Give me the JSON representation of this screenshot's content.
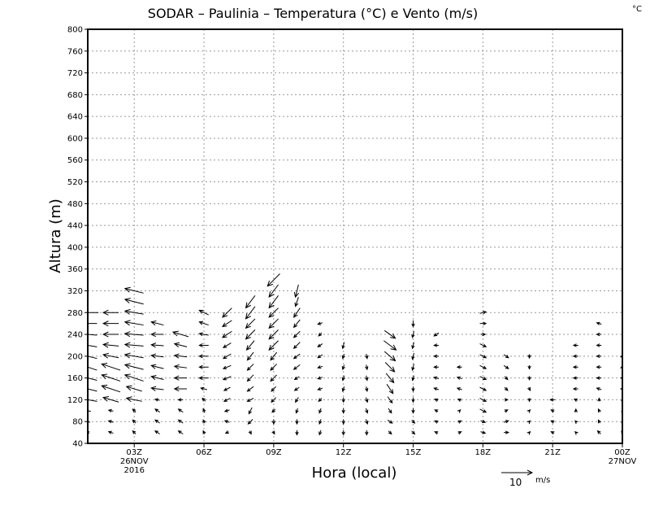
{
  "chart_data": {
    "type": "vector",
    "title": "SODAR  –  Paulinia  –  Temperatura (°C) e Vento (m/s)",
    "colorbar_unit": "°C",
    "xlabel": "Hora (local)",
    "ylabel": "Altura (m)",
    "ylim": [
      40,
      800
    ],
    "yticks": [
      40,
      80,
      120,
      160,
      200,
      240,
      280,
      320,
      360,
      400,
      440,
      480,
      520,
      560,
      600,
      640,
      680,
      720,
      760,
      800
    ],
    "xlim_hours": [
      1,
      24
    ],
    "xticks": [
      {
        "hour": 3,
        "label": "03Z",
        "sub1": "26NOV",
        "sub2": "2016"
      },
      {
        "hour": 6,
        "label": "06Z"
      },
      {
        "hour": 9,
        "label": "09Z"
      },
      {
        "hour": 12,
        "label": "12Z"
      },
      {
        "hour": 15,
        "label": "15Z"
      },
      {
        "hour": 18,
        "label": "18Z"
      },
      {
        "hour": 21,
        "label": "21Z"
      },
      {
        "hour": 24,
        "label": "00Z",
        "sub1": "27NOV"
      }
    ],
    "grid": true,
    "reference_vector": {
      "value": "10",
      "unit": "m/s",
      "speed": 10
    },
    "level_start_m": 60,
    "level_step_m": 20,
    "series_note": "wind vectors [u, v] in m/s per hour column, from 60 m upward every 20 m",
    "columns": [
      {
        "hour": 1,
        "uv": [
          [
            -1,
            0.5
          ],
          [
            -1.5,
            0.5
          ],
          [
            -2,
            0.5
          ],
          [
            -6,
            1
          ],
          [
            -6,
            1.5
          ],
          [
            -6,
            1.5
          ],
          [
            -6,
            2
          ],
          [
            -6,
            1.5
          ],
          [
            -6,
            1
          ],
          [
            -6,
            0.5
          ],
          [
            -6,
            0
          ],
          [
            -7,
            0
          ]
        ]
      },
      {
        "hour": 2,
        "uv": [
          [
            -1.5,
            0.5
          ],
          [
            -1.5,
            0.5
          ],
          [
            -1.5,
            0.3
          ],
          [
            -5,
            1.5
          ],
          [
            -6,
            2
          ],
          [
            -6,
            2
          ],
          [
            -6,
            2
          ],
          [
            -5,
            1
          ],
          [
            -5,
            0.5
          ],
          [
            -5,
            0
          ],
          [
            -5,
            0
          ],
          [
            -5,
            0
          ]
        ]
      },
      {
        "hour": 3,
        "uv": [
          [
            -1,
            1
          ],
          [
            -1,
            1
          ],
          [
            -1,
            1
          ],
          [
            -5,
            1
          ],
          [
            -5,
            1.5
          ],
          [
            -6,
            2
          ],
          [
            -6,
            1.5
          ],
          [
            -6,
            1
          ],
          [
            -6,
            0.5
          ],
          [
            -6,
            0.5
          ],
          [
            -6,
            1
          ],
          [
            -6,
            1
          ],
          [
            -6,
            1.5
          ],
          [
            -6,
            1.5
          ]
        ]
      },
      {
        "hour": 4,
        "uv": [
          [
            -1.5,
            1
          ],
          [
            -1.5,
            1
          ],
          [
            -1.5,
            1
          ],
          [
            -1.5,
            0.3
          ],
          [
            -4,
            0.5
          ],
          [
            -4,
            1
          ],
          [
            -4,
            1
          ],
          [
            -4,
            0.5
          ],
          [
            -4,
            0.3
          ],
          [
            -4,
            0
          ],
          [
            -4,
            1
          ]
        ]
      },
      {
        "hour": 5,
        "uv": [
          [
            -1.5,
            1
          ],
          [
            -1.5,
            1
          ],
          [
            -1.5,
            1
          ],
          [
            -1.5,
            0
          ],
          [
            -4,
            0
          ],
          [
            -4,
            0
          ],
          [
            -4,
            0.5
          ],
          [
            -4,
            0.5
          ],
          [
            -4,
            1
          ],
          [
            -5,
            1.5
          ]
        ]
      },
      {
        "hour": 6,
        "uv": [
          [
            -0.5,
            1
          ],
          [
            -0.5,
            1
          ],
          [
            -0.5,
            1.2
          ],
          [
            -1,
            1
          ],
          [
            -2,
            0.5
          ],
          [
            -3,
            0
          ],
          [
            -3,
            0
          ],
          [
            -3,
            0
          ],
          [
            -3,
            0
          ],
          [
            -3,
            0.5
          ],
          [
            -3,
            1
          ],
          [
            -3,
            1.5
          ]
        ]
      },
      {
        "hour": 7,
        "uv": [
          [
            -1,
            -0.5
          ],
          [
            -1.5,
            0.5
          ],
          [
            -1.5,
            -0.5
          ],
          [
            -2,
            -1
          ],
          [
            -2,
            -1
          ],
          [
            -2.5,
            -1
          ],
          [
            -2.5,
            -1
          ],
          [
            -2.5,
            -1.5
          ],
          [
            -2.5,
            -1.5
          ],
          [
            -3,
            -2
          ],
          [
            -3,
            -2
          ],
          [
            -3,
            -3
          ]
        ]
      },
      {
        "hour": 8,
        "uv": [
          [
            0.5,
            -1
          ],
          [
            -1.5,
            -1.5
          ],
          [
            -1,
            -2
          ],
          [
            -2,
            -1
          ],
          [
            -2,
            -1.5
          ],
          [
            -2,
            -2
          ],
          [
            -2,
            -2
          ],
          [
            -2,
            -2.5
          ],
          [
            -2.5,
            -3
          ],
          [
            -3,
            -3
          ],
          [
            -3,
            -3
          ],
          [
            -3,
            -4
          ],
          [
            -3,
            -4
          ]
        ]
      },
      {
        "hour": 9,
        "uv": [
          [
            0.5,
            -1
          ],
          [
            0,
            -1.5
          ],
          [
            -1,
            -1
          ],
          [
            -1.5,
            -1.5
          ],
          [
            -1.5,
            -1.5
          ],
          [
            -2,
            -2
          ],
          [
            -2,
            -2
          ],
          [
            -2,
            -2.5
          ],
          [
            -3,
            -3
          ],
          [
            -3,
            -3
          ],
          [
            -3,
            -3
          ],
          [
            -3,
            -3
          ],
          [
            -3,
            -4
          ],
          [
            -3,
            -4
          ],
          [
            -4,
            -4
          ]
        ]
      },
      {
        "hour": 10,
        "uv": [
          [
            0,
            -1.5
          ],
          [
            0,
            -1.5
          ],
          [
            -0.5,
            -1.5
          ],
          [
            -1,
            -1.5
          ],
          [
            -1.5,
            -1
          ],
          [
            -1.5,
            -1
          ],
          [
            -2,
            -1.5
          ],
          [
            -2,
            -1.5
          ],
          [
            -2,
            -2
          ],
          [
            -2,
            -2
          ],
          [
            -2,
            -2.5
          ],
          [
            -2,
            -3
          ],
          [
            -1,
            -3
          ],
          [
            -1,
            -4
          ]
        ]
      },
      {
        "hour": 11,
        "uv": [
          [
            -0.5,
            -1.5
          ],
          [
            -0.5,
            -1.5
          ],
          [
            -0.5,
            -1.5
          ],
          [
            -1,
            -1
          ],
          [
            -1.5,
            -0.5
          ],
          [
            -1.5,
            -0.5
          ],
          [
            -1.5,
            -0.5
          ],
          [
            -1.5,
            -1
          ],
          [
            -1.5,
            -1
          ],
          [
            -1,
            -1
          ],
          [
            -1.5,
            -0.5
          ]
        ]
      },
      {
        "hour": 12,
        "uv": [
          [
            0,
            -1.5
          ],
          [
            0,
            -1.5
          ],
          [
            0,
            -1.5
          ],
          [
            0,
            -1.5
          ],
          [
            -0.5,
            -1.5
          ],
          [
            -0.5,
            -1.5
          ],
          [
            -0.5,
            -1.5
          ],
          [
            -0.5,
            -1.5
          ],
          [
            -0.5,
            -2
          ]
        ]
      },
      {
        "hour": 13,
        "uv": [
          [
            0,
            -1.5
          ],
          [
            0.5,
            -1.5
          ],
          [
            0.5,
            -1.5
          ],
          [
            0.5,
            -1.5
          ],
          [
            0.3,
            -1.5
          ],
          [
            0.3,
            -1.5
          ],
          [
            0.3,
            -1.5
          ],
          [
            0.3,
            -1.5
          ]
        ]
      },
      {
        "hour": 14,
        "uv": [
          [
            1,
            -1
          ],
          [
            1.5,
            -1
          ],
          [
            1,
            -1.5
          ],
          [
            1.5,
            -2
          ],
          [
            2,
            -3
          ],
          [
            2.5,
            -3
          ],
          [
            3,
            -3
          ],
          [
            3.5,
            -3
          ],
          [
            4,
            -3
          ],
          [
            3.5,
            -2.5
          ]
        ]
      },
      {
        "hour": 15,
        "uv": [
          [
            1,
            -1
          ],
          [
            1,
            -1
          ],
          [
            0,
            -1.5
          ],
          [
            0,
            -1.5
          ],
          [
            0,
            -1.5
          ],
          [
            -0.5,
            -1.5
          ],
          [
            -0.5,
            -2
          ],
          [
            -0.5,
            -2
          ],
          [
            -0.5,
            -2
          ],
          [
            -0.5,
            -2
          ],
          [
            0,
            -2
          ]
        ]
      },
      {
        "hour": 16,
        "uv": [
          [
            -1,
            0.5
          ],
          [
            -1,
            0.5
          ],
          [
            -1,
            0.5
          ],
          [
            -1,
            0.5
          ],
          [
            -1.5,
            0.5
          ],
          [
            -1.5,
            0.5
          ],
          [
            -1.5,
            0
          ],
          [
            -1.5,
            0
          ],
          [
            -1.5,
            0
          ],
          [
            -1.5,
            -1
          ]
        ]
      },
      {
        "hour": 17,
        "uv": [
          [
            1,
            0.5
          ],
          [
            1,
            0.5
          ],
          [
            0.5,
            0.5
          ],
          [
            -1,
            0.5
          ],
          [
            -1.5,
            0.5
          ],
          [
            -1.5,
            0.5
          ],
          [
            -1.5,
            0
          ]
        ]
      },
      {
        "hour": 18,
        "uv": [
          [
            1.5,
            -0.5
          ],
          [
            1.5,
            -0.5
          ],
          [
            2,
            -1
          ],
          [
            2,
            -1
          ],
          [
            2,
            -1
          ],
          [
            2,
            -1
          ],
          [
            2,
            -1
          ],
          [
            2,
            -1
          ],
          [
            2,
            -1
          ],
          [
            1.5,
            0
          ],
          [
            2,
            0
          ],
          [
            2,
            0.5
          ]
        ]
      },
      {
        "hour": 19,
        "uv": [
          [
            1.5,
            0
          ],
          [
            1.5,
            0.5
          ],
          [
            1,
            0.5
          ],
          [
            1,
            0
          ],
          [
            1,
            -1
          ],
          [
            1,
            -1
          ],
          [
            1.5,
            -1
          ],
          [
            1.5,
            -1
          ]
        ]
      },
      {
        "hour": 20,
        "uv": [
          [
            0.5,
            0.5
          ],
          [
            0.5,
            0.5
          ],
          [
            0.5,
            0.5
          ],
          [
            0,
            -1
          ],
          [
            0.5,
            -1
          ],
          [
            0,
            -1.2
          ],
          [
            0,
            -1.2
          ],
          [
            0,
            -1.2
          ]
        ]
      },
      {
        "hour": 21,
        "uv": [
          [
            -1,
            0.5
          ],
          [
            -1,
            0.5
          ],
          [
            -1,
            0.5
          ],
          [
            -1.5,
            0
          ]
        ]
      },
      {
        "hour": 22,
        "uv": [
          [
            -0.5,
            0.5
          ],
          [
            -0.5,
            0.5
          ],
          [
            0,
            1
          ],
          [
            -1,
            0.5
          ],
          [
            -1.5,
            0
          ],
          [
            -1.5,
            0
          ],
          [
            -1.5,
            0
          ],
          [
            -1.5,
            0
          ],
          [
            -1.5,
            0
          ]
        ]
      },
      {
        "hour": 23,
        "uv": [
          [
            -1,
            1
          ],
          [
            -0.5,
            1
          ],
          [
            -0.5,
            1
          ],
          [
            0,
            1
          ],
          [
            -1.5,
            0.5
          ],
          [
            -1.5,
            0
          ],
          [
            -1.5,
            0
          ],
          [
            -1.5,
            0
          ],
          [
            -1.5,
            0
          ],
          [
            -1.5,
            0
          ],
          [
            -1.5,
            0.5
          ]
        ]
      },
      {
        "hour": 24,
        "uv": [
          [
            -0.3,
            -1
          ],
          [
            -0.5,
            -0.5
          ],
          [
            -0.5,
            -0.5
          ],
          [
            -0.5,
            -0.5
          ],
          [
            -1,
            0
          ],
          [
            -1,
            0
          ],
          [
            -1,
            -0.5
          ],
          [
            -1,
            -0.5
          ]
        ]
      }
    ]
  }
}
